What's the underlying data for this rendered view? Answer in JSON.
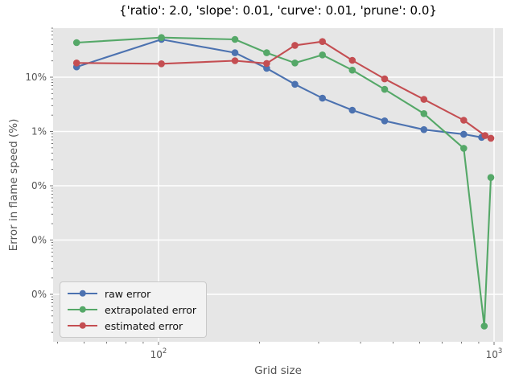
{
  "title": "{'ratio': 2.0, 'slope': 0.01, 'curve': 0.01, 'prune': 0.0}",
  "x_axis": {
    "label": "Grid size",
    "scale": "log",
    "major_ticks": [
      {
        "value": 100,
        "base": "10",
        "exp": "2"
      },
      {
        "value": 1000,
        "base": "10",
        "exp": "3"
      }
    ]
  },
  "y_axis": {
    "label": "Error in flame speed (%)",
    "scale": "log",
    "major_ticks": [
      {
        "value": 10,
        "label": "10%"
      },
      {
        "value": 1,
        "label": "1%"
      },
      {
        "value": 0.1,
        "label": "0%"
      },
      {
        "value": 0.01,
        "label": "0%"
      },
      {
        "value": 0.001,
        "label": "0%"
      }
    ]
  },
  "legend": {
    "entries": [
      {
        "label": "raw error",
        "color": "#4C72B0"
      },
      {
        "label": "extrapolated error",
        "color": "#55A868"
      },
      {
        "label": "estimated error",
        "color": "#C44E52"
      }
    ]
  },
  "chart_data": {
    "type": "line",
    "title": "{'ratio': 2.0, 'slope': 0.01, 'curve': 0.01, 'prune': 0.0}",
    "xlabel": "Grid size",
    "ylabel": "Error in flame speed (%)",
    "x_scale": "log",
    "y_scale": "log",
    "x_range": [
      48,
      1065
    ],
    "y_range_percent": [
      0.00013,
      80
    ],
    "grid": "white major gridlines on gray background",
    "legend_position": "lower left",
    "series": [
      {
        "name": "raw error",
        "color": "#4C72B0",
        "points": [
          [
            57,
            15.5
          ],
          [
            102,
            49.7
          ],
          [
            169,
            28.2
          ],
          [
            210,
            14.6
          ],
          [
            255,
            7.4
          ],
          [
            308,
            4.1
          ],
          [
            378,
            2.47
          ],
          [
            472,
            1.57
          ],
          [
            618,
            1.08
          ],
          [
            812,
            0.89
          ],
          [
            918,
            0.78
          ]
        ]
      },
      {
        "name": "extrapolated error",
        "color": "#55A868",
        "points": [
          [
            57,
            43.4
          ],
          [
            102,
            53.7
          ],
          [
            169,
            49.7
          ],
          [
            210,
            28.2
          ],
          [
            255,
            18.3
          ],
          [
            308,
            25.7
          ],
          [
            378,
            13.5
          ],
          [
            472,
            5.97
          ],
          [
            618,
            2.13
          ],
          [
            812,
            0.49
          ],
          [
            935,
            0.00026
          ],
          [
            978,
            0.142
          ]
        ]
      },
      {
        "name": "estimated error",
        "color": "#C44E52",
        "points": [
          [
            57,
            18.3
          ],
          [
            102,
            17.7
          ],
          [
            169,
            20.1
          ],
          [
            210,
            17.9
          ],
          [
            255,
            38.6
          ],
          [
            308,
            45.3
          ],
          [
            378,
            20.5
          ],
          [
            472,
            9.3
          ],
          [
            618,
            3.9
          ],
          [
            812,
            1.61
          ],
          [
            940,
            0.84
          ],
          [
            978,
            0.75
          ]
        ]
      }
    ]
  },
  "colors": {
    "figure_bg": "#ffffff",
    "axes_bg": "#e6e6e6",
    "grid": "#ffffff",
    "tick": "#666666",
    "muted_text": "#555555",
    "title_text": "#000000"
  }
}
